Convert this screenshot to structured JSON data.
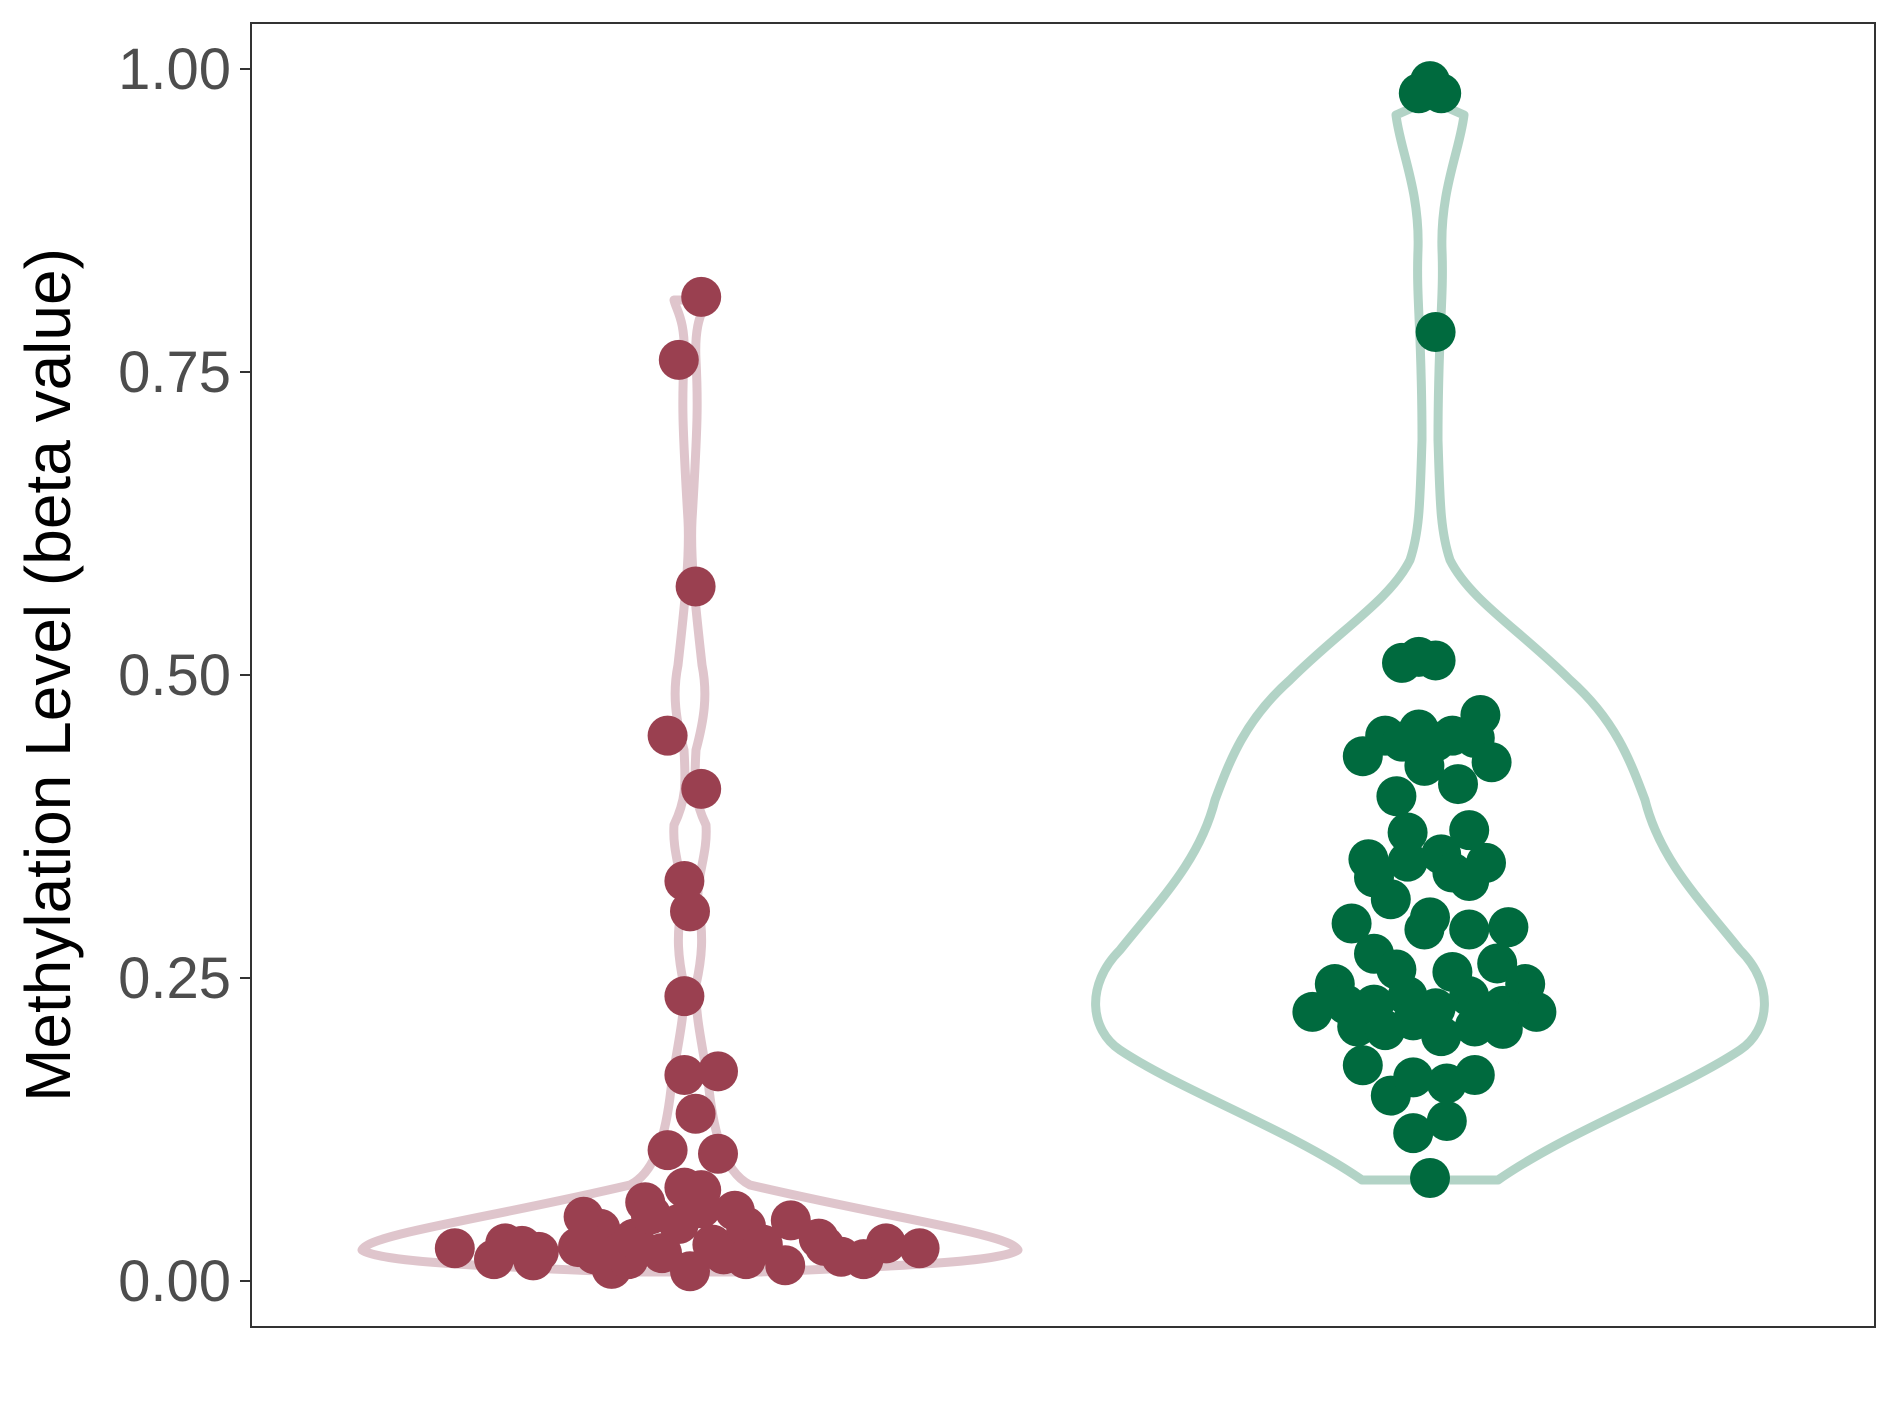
{
  "chart_data": {
    "type": "violin",
    "ylabel": "Methylation Level (beta value)",
    "xlabel": "",
    "ylim": [
      -0.04,
      1.035
    ],
    "yticks": [
      0.0,
      0.25,
      0.5,
      0.75,
      1.0
    ],
    "ytick_labels": [
      "0.00",
      "0.25",
      "0.50",
      "0.75",
      "1.00"
    ],
    "grid": false,
    "legend": "none",
    "series": [
      {
        "color": "#9a4050",
        "violin_color": "#dfc5cc",
        "points": [
          [
            -0.42,
            0.027
          ],
          [
            -0.35,
            0.018
          ],
          [
            -0.33,
            0.031
          ],
          [
            -0.3,
            0.029
          ],
          [
            -0.28,
            0.017
          ],
          [
            -0.27,
            0.024
          ],
          [
            -0.2,
            0.028
          ],
          [
            -0.19,
            0.053
          ],
          [
            -0.17,
            0.022
          ],
          [
            -0.16,
            0.043
          ],
          [
            -0.15,
            0.03
          ],
          [
            -0.14,
            0.01
          ],
          [
            -0.12,
            0.025
          ],
          [
            -0.11,
            0.018
          ],
          [
            -0.1,
            0.035
          ],
          [
            -0.08,
            0.065
          ],
          [
            -0.07,
            0.055
          ],
          [
            -0.05,
            0.023
          ],
          [
            -0.04,
            0.108
          ],
          [
            -0.02,
            0.047
          ],
          [
            -0.01,
            0.17
          ],
          [
            -0.01,
            0.077
          ],
          [
            0.0,
            0.008
          ],
          [
            0.01,
            0.138
          ],
          [
            0.02,
            0.06
          ],
          [
            0.02,
            0.075
          ],
          [
            0.04,
            0.03
          ],
          [
            0.05,
            0.105
          ],
          [
            0.05,
            0.173
          ],
          [
            0.06,
            0.022
          ],
          [
            0.08,
            0.058
          ],
          [
            0.1,
            0.03
          ],
          [
            0.1,
            0.045
          ],
          [
            0.1,
            0.018
          ],
          [
            0.13,
            0.03
          ],
          [
            0.17,
            0.013
          ],
          [
            0.18,
            0.05
          ],
          [
            0.23,
            0.035
          ],
          [
            0.24,
            0.029
          ],
          [
            0.27,
            0.02
          ],
          [
            0.31,
            0.018
          ],
          [
            0.35,
            0.031
          ],
          [
            0.41,
            0.027
          ],
          [
            -0.04,
            0.45
          ],
          [
            -0.01,
            0.235
          ],
          [
            -0.01,
            0.33
          ],
          [
            0.0,
            0.305
          ],
          [
            0.01,
            0.573
          ],
          [
            0.02,
            0.406
          ],
          [
            -0.02,
            0.76
          ],
          [
            0.02,
            0.812
          ]
        ]
      },
      {
        "color": "#006a3e",
        "violin_color": "#b2d3c6",
        "points": [
          [
            -0.02,
            0.98
          ],
          [
            0.0,
            0.99
          ],
          [
            0.02,
            0.98
          ],
          [
            0.01,
            0.783
          ],
          [
            -0.05,
            0.51
          ],
          [
            -0.02,
            0.515
          ],
          [
            0.01,
            0.512
          ],
          [
            -0.12,
            0.433
          ],
          [
            -0.08,
            0.45
          ],
          [
            -0.05,
            0.445
          ],
          [
            -0.02,
            0.455
          ],
          [
            -0.01,
            0.425
          ],
          [
            0.01,
            0.445
          ],
          [
            0.04,
            0.45
          ],
          [
            0.08,
            0.448
          ],
          [
            0.09,
            0.467
          ],
          [
            0.11,
            0.428
          ],
          [
            -0.06,
            0.4
          ],
          [
            0.05,
            0.41
          ],
          [
            -0.04,
            0.37
          ],
          [
            0.07,
            0.372
          ],
          [
            -0.11,
            0.348
          ],
          [
            -0.04,
            0.346
          ],
          [
            0.02,
            0.352
          ],
          [
            0.04,
            0.337
          ],
          [
            -0.1,
            0.333
          ],
          [
            0.07,
            0.33
          ],
          [
            0.1,
            0.345
          ],
          [
            -0.07,
            0.315
          ],
          [
            0.0,
            0.3
          ],
          [
            -0.01,
            0.29
          ],
          [
            -0.14,
            0.295
          ],
          [
            0.07,
            0.29
          ],
          [
            0.14,
            0.292
          ],
          [
            -0.1,
            0.27
          ],
          [
            -0.06,
            0.257
          ],
          [
            0.04,
            0.255
          ],
          [
            0.12,
            0.262
          ],
          [
            -0.21,
            0.222
          ],
          [
            -0.17,
            0.245
          ],
          [
            -0.15,
            0.228
          ],
          [
            -0.13,
            0.21
          ],
          [
            -0.1,
            0.228
          ],
          [
            -0.08,
            0.207
          ],
          [
            -0.04,
            0.235
          ],
          [
            -0.03,
            0.215
          ],
          [
            0.01,
            0.225
          ],
          [
            0.02,
            0.202
          ],
          [
            0.07,
            0.235
          ],
          [
            0.08,
            0.21
          ],
          [
            0.13,
            0.227
          ],
          [
            0.13,
            0.208
          ],
          [
            0.17,
            0.245
          ],
          [
            0.19,
            0.222
          ],
          [
            -0.12,
            0.178
          ],
          [
            -0.07,
            0.153
          ],
          [
            -0.03,
            0.168
          ],
          [
            0.03,
            0.163
          ],
          [
            0.08,
            0.17
          ],
          [
            -0.03,
            0.122
          ],
          [
            0.03,
            0.132
          ],
          [
            0.0,
            0.085
          ]
        ]
      }
    ]
  }
}
